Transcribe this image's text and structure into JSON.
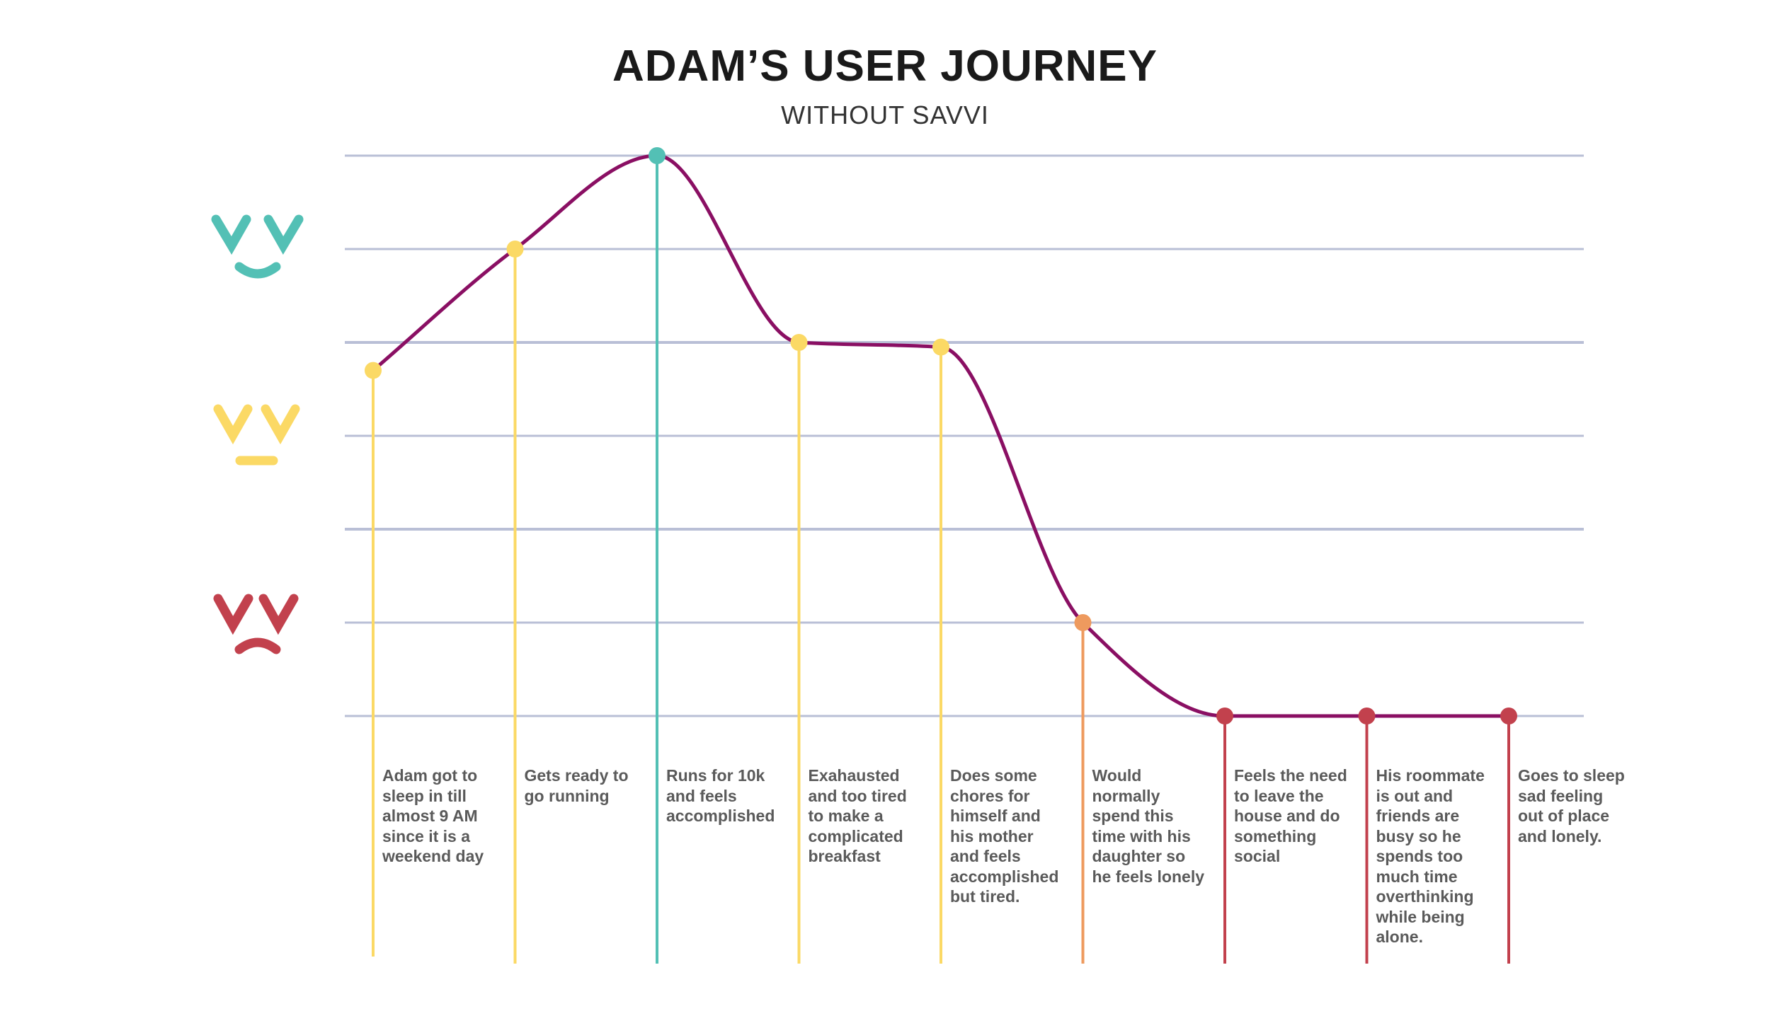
{
  "title": "ADAM’S USER JOURNEY",
  "subtitle": "WITHOUT SAVVI",
  "colors": {
    "happy": "#53c0b5",
    "neutral": "#fbd965",
    "sad": "#c2414d",
    "transition": "#ee9a5e",
    "curve": "#8a0f63",
    "gridline": "#b9bfd6",
    "text": "#5a5a5a"
  },
  "mood_icons": [
    {
      "name": "happy-face-icon",
      "mood": "happy"
    },
    {
      "name": "neutral-face-icon",
      "mood": "neutral"
    },
    {
      "name": "sad-face-icon",
      "mood": "sad"
    }
  ],
  "chart_data": {
    "type": "line",
    "title": "ADAM’S USER JOURNEY",
    "subtitle": "WITHOUT SAVVI",
    "y_axis": "mood level (unlabeled, 0 = lowest gridline, 6 = highest); faces: happy at top, neutral middle, sad bottom",
    "ylim": [
      0,
      6
    ],
    "grid": true,
    "series": [
      {
        "values": [
          3.7,
          5,
          6,
          4,
          3.95,
          1,
          0,
          0,
          0
        ],
        "marker_colors": [
          "neutral",
          "neutral",
          "happy",
          "neutral",
          "neutral",
          "transition",
          "sad",
          "sad",
          "sad"
        ]
      }
    ],
    "categories": [
      "Adam got to\nsleep in till\nalmost  9 AM\nsince it is a\nweekend day",
      "Gets ready to\ngo running",
      "Runs for 10k\nand feels\naccomplished",
      "Exahausted\nand too tired\nto make a\ncomplicated\nbreakfast",
      "Does some\nchores for\nhimself and\nhis mother\nand feels\naccomplished\nbut tired.",
      "Would\nnormally\nspend this\ntime with his\ndaughter so\nhe feels lonely",
      "Feels the need\nto leave the\nhouse and do\nsomething\nsocial",
      "His roommate\nis out and\nfriends are\nbusy so he\nspends too\nmuch time\noverthinking\nwhile being\nalone.",
      "Goes to sleep\nsad feeling\nout of place\nand lonely."
    ]
  }
}
